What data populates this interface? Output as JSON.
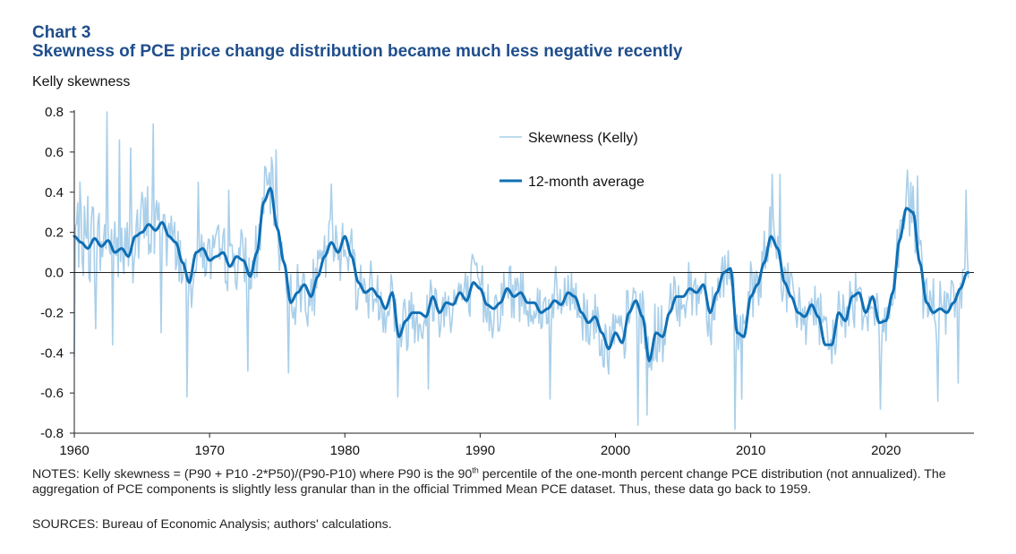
{
  "header": {
    "chart_number": "Chart 3",
    "title": "Skewness of PCE price change distribution became much less negative recently"
  },
  "notes": {
    "part1": "NOTES: Kelly skewness = (P90 + P10 -2*P50)/(P90-P10) where P90 is the 90",
    "sup": "th",
    "part2": " percentile of the one-month percent change PCE distribution (not annualized). The aggregation of PCE components is slightly less granular than in the official Trimmed Mean PCE dataset. Thus, these data go back to 1959."
  },
  "sources": "SOURCES: Bureau of Economic Analysis; authors' calculations.",
  "colors": {
    "title": "#1f4e8c",
    "monthly": "#a9cfea",
    "average": "#0f6fb5",
    "axis": "#222222"
  },
  "chart_data": {
    "type": "line",
    "ylabel": "Kelly skewness",
    "xlabel": "",
    "xlim": [
      1960,
      2026.5
    ],
    "ylim": [
      -0.8,
      0.8
    ],
    "x_ticks": [
      1960,
      1970,
      1980,
      1990,
      2000,
      2010,
      2020
    ],
    "y_ticks": [
      "0.8",
      "0.6",
      "0.4",
      "0.2",
      "0.0",
      "-0.2",
      "-0.4",
      "-0.6",
      "-0.8"
    ],
    "y_tick_values": [
      0.8,
      0.6,
      0.4,
      0.2,
      0.0,
      -0.2,
      -0.4,
      -0.6,
      -0.8
    ],
    "grid": false,
    "legend_position": "top-center",
    "series": [
      {
        "name": "Skewness (Kelly)",
        "style": "thin-light",
        "note": "monthly, noisy around the 12-month average; approximate extreme readings listed",
        "x": [
          1959.9,
          1960.4,
          1961.0,
          1961.6,
          1962.4,
          1962.8,
          1963.3,
          1964.2,
          1965.1,
          1965.8,
          1966.4,
          1968.3,
          1969.2,
          1971.4,
          1972.8,
          1974.2,
          1974.9,
          1975.8,
          1979.0,
          1983.9,
          1985.2,
          1986.2,
          1995.2,
          2001.7,
          2002.3,
          2008.8,
          2009.3,
          2011.6,
          2012.2,
          2019.6,
          2021.6,
          2022.3,
          2023.8,
          2025.3,
          2025.9
        ],
        "y": [
          -0.42,
          0.45,
          0.38,
          -0.28,
          0.8,
          -0.36,
          0.66,
          0.62,
          0.36,
          0.74,
          -0.3,
          -0.62,
          0.45,
          0.41,
          -0.49,
          0.52,
          0.61,
          -0.5,
          0.44,
          -0.62,
          -0.35,
          -0.58,
          -0.63,
          -0.76,
          -0.71,
          -0.78,
          -0.63,
          0.49,
          0.49,
          -0.68,
          0.51,
          0.48,
          -0.64,
          -0.55,
          0.41
        ]
      },
      {
        "name": "12-month average",
        "style": "thick-dark",
        "x": [
          1960.0,
          1960.5,
          1961.0,
          1961.5,
          1962.0,
          1962.5,
          1963.0,
          1963.5,
          1964.0,
          1964.5,
          1965.0,
          1965.5,
          1966.0,
          1966.5,
          1967.0,
          1967.5,
          1968.0,
          1968.5,
          1969.0,
          1969.5,
          1970.0,
          1970.5,
          1971.0,
          1971.5,
          1972.0,
          1972.5,
          1973.0,
          1973.5,
          1974.0,
          1974.5,
          1975.0,
          1975.5,
          1976.0,
          1976.5,
          1977.0,
          1977.5,
          1978.0,
          1978.5,
          1979.0,
          1979.5,
          1980.0,
          1980.5,
          1981.0,
          1981.5,
          1982.0,
          1982.5,
          1983.0,
          1983.5,
          1984.0,
          1984.5,
          1985.0,
          1985.5,
          1986.0,
          1986.5,
          1987.0,
          1987.5,
          1988.0,
          1988.5,
          1989.0,
          1989.5,
          1990.0,
          1990.5,
          1991.0,
          1991.5,
          1992.0,
          1992.5,
          1993.0,
          1993.5,
          1994.0,
          1994.5,
          1995.0,
          1995.5,
          1996.0,
          1996.5,
          1997.0,
          1997.5,
          1998.0,
          1998.5,
          1999.0,
          1999.5,
          2000.0,
          2000.5,
          2001.0,
          2001.5,
          2002.0,
          2002.5,
          2003.0,
          2003.5,
          2004.0,
          2004.5,
          2005.0,
          2005.5,
          2006.0,
          2006.5,
          2007.0,
          2007.5,
          2008.0,
          2008.5,
          2009.0,
          2009.5,
          2010.0,
          2010.5,
          2011.0,
          2011.5,
          2012.0,
          2012.5,
          2013.0,
          2013.5,
          2014.0,
          2014.5,
          2015.0,
          2015.5,
          2016.0,
          2016.5,
          2017.0,
          2017.5,
          2018.0,
          2018.5,
          2019.0,
          2019.5,
          2020.0,
          2020.5,
          2021.0,
          2021.5,
          2022.0,
          2022.5,
          2023.0,
          2023.5,
          2024.0,
          2024.5,
          2025.0,
          2025.5,
          2026.0
        ],
        "y": [
          0.18,
          0.15,
          0.12,
          0.17,
          0.13,
          0.16,
          0.1,
          0.12,
          0.08,
          0.18,
          0.2,
          0.24,
          0.21,
          0.25,
          0.18,
          0.15,
          0.05,
          -0.05,
          0.1,
          0.12,
          0.06,
          0.08,
          0.1,
          0.03,
          0.08,
          0.06,
          -0.02,
          0.1,
          0.35,
          0.42,
          0.22,
          0.05,
          -0.15,
          -0.1,
          -0.06,
          -0.12,
          -0.02,
          0.08,
          0.15,
          0.1,
          0.18,
          0.08,
          -0.05,
          -0.1,
          -0.08,
          -0.12,
          -0.18,
          -0.1,
          -0.32,
          -0.24,
          -0.2,
          -0.2,
          -0.22,
          -0.12,
          -0.2,
          -0.15,
          -0.16,
          -0.1,
          -0.14,
          -0.05,
          -0.08,
          -0.16,
          -0.18,
          -0.15,
          -0.08,
          -0.12,
          -0.1,
          -0.15,
          -0.15,
          -0.2,
          -0.18,
          -0.14,
          -0.16,
          -0.1,
          -0.12,
          -0.2,
          -0.25,
          -0.22,
          -0.3,
          -0.38,
          -0.3,
          -0.35,
          -0.2,
          -0.14,
          -0.22,
          -0.44,
          -0.3,
          -0.32,
          -0.2,
          -0.12,
          -0.12,
          -0.08,
          -0.1,
          -0.06,
          -0.2,
          -0.1,
          0.0,
          0.02,
          -0.3,
          -0.32,
          -0.12,
          -0.06,
          0.05,
          0.18,
          0.12,
          -0.05,
          -0.12,
          -0.2,
          -0.22,
          -0.16,
          -0.22,
          -0.36,
          -0.36,
          -0.2,
          -0.24,
          -0.12,
          -0.1,
          -0.2,
          -0.12,
          -0.25,
          -0.24,
          -0.1,
          0.16,
          0.32,
          0.3,
          0.05,
          -0.15,
          -0.2,
          -0.18,
          -0.2,
          -0.15,
          -0.08,
          0.0
        ]
      }
    ]
  }
}
